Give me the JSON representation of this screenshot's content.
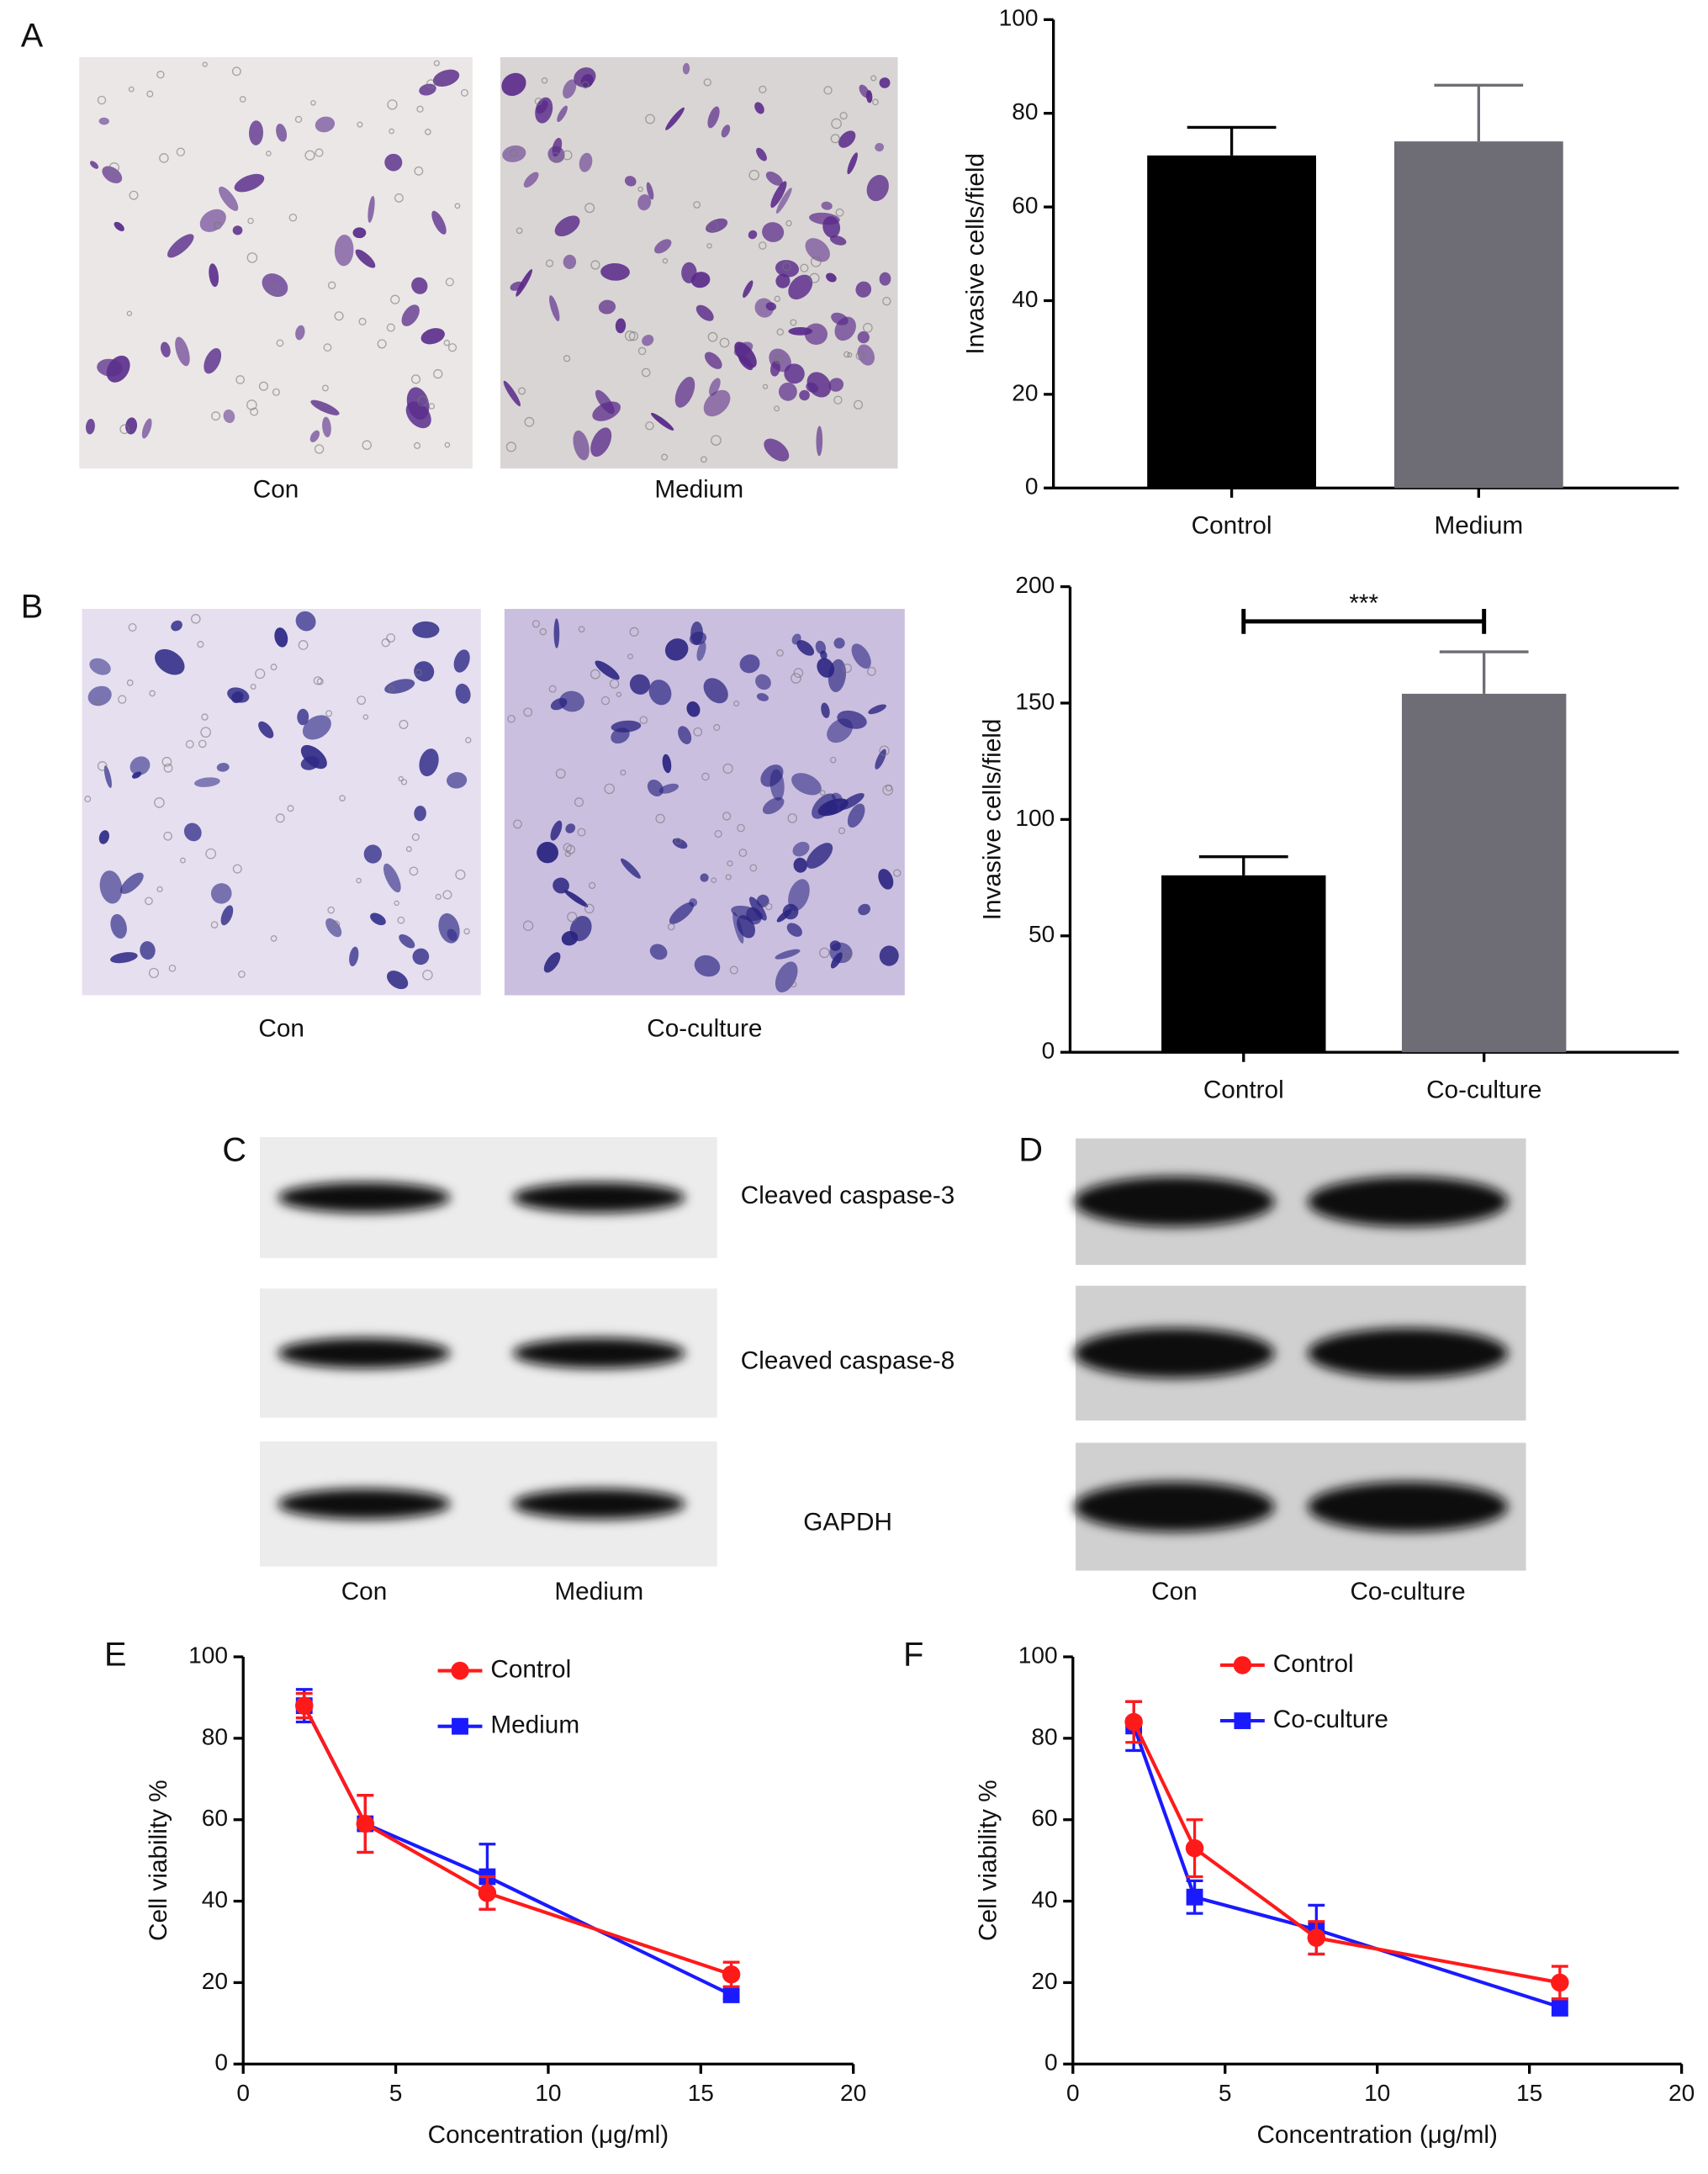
{
  "panel_labels": [
    "A",
    "B",
    "C",
    "D",
    "E",
    "F"
  ],
  "images": [
    {
      "caption": "Con"
    },
    {
      "caption": "Medium"
    },
    {
      "caption": "Con"
    },
    {
      "caption": "Co-culture"
    }
  ],
  "blots": {
    "proteins": [
      "Cleaved caspase-3",
      "Cleaved caspase-8",
      "GAPDH"
    ],
    "C": {
      "lanes": [
        "Con",
        "Medium"
      ]
    },
    "D": {
      "lanes": [
        "Con",
        "Co-culture"
      ]
    }
  },
  "chart_data": [
    {
      "type": "bar",
      "ylabel": "Invasive cells/field",
      "categories": [
        "Control",
        "Medium"
      ],
      "values": [
        71,
        74
      ],
      "errors": [
        6,
        12
      ],
      "colors": [
        "#000000",
        "#6e6d75"
      ],
      "ylim": [
        0,
        100
      ],
      "yticks": [
        0,
        20,
        40,
        60,
        80,
        100
      ]
    },
    {
      "type": "bar",
      "ylabel": "Invasive cells/field",
      "categories": [
        "Control",
        "Co-culture"
      ],
      "values": [
        76,
        154
      ],
      "errors": [
        8,
        18
      ],
      "colors": [
        "#000000",
        "#6e6d75"
      ],
      "ylim": [
        0,
        200
      ],
      "yticks": [
        0,
        50,
        100,
        150,
        200
      ],
      "annotation": "***"
    },
    {
      "type": "line",
      "xlabel": "Concentration (μg/ml)",
      "ylabel": "Cell viability %",
      "x": [
        2,
        4,
        8,
        16
      ],
      "xlim": [
        0,
        20
      ],
      "xticks": [
        0,
        5,
        10,
        15,
        20
      ],
      "ylim": [
        0,
        100
      ],
      "yticks": [
        0,
        20,
        40,
        60,
        80,
        100
      ],
      "series": [
        {
          "name": "Medium",
          "color": "#1a1aff",
          "marker": "square",
          "values": [
            88,
            59,
            46,
            17
          ],
          "errors": [
            4,
            7,
            8,
            1
          ]
        },
        {
          "name": "Control",
          "color": "#ff1a1a",
          "marker": "circle",
          "values": [
            88,
            59,
            42,
            22
          ],
          "errors": [
            3,
            7,
            4,
            3
          ]
        }
      ]
    },
    {
      "type": "line",
      "xlabel": "Concentration (μg/ml)",
      "ylabel": "Cell viability %",
      "x": [
        2,
        4,
        8,
        16
      ],
      "xlim": [
        0,
        20
      ],
      "xticks": [
        0,
        5,
        10,
        15,
        20
      ],
      "ylim": [
        0,
        100
      ],
      "yticks": [
        0,
        20,
        40,
        60,
        80,
        100
      ],
      "series": [
        {
          "name": "Co-culture",
          "color": "#1a1aff",
          "marker": "square",
          "values": [
            83,
            41,
            33,
            14
          ],
          "errors": [
            6,
            4,
            6,
            2
          ]
        },
        {
          "name": "Control",
          "color": "#ff1a1a",
          "marker": "circle",
          "values": [
            84,
            53,
            31,
            20
          ],
          "errors": [
            5,
            7,
            4,
            4
          ]
        }
      ]
    }
  ]
}
